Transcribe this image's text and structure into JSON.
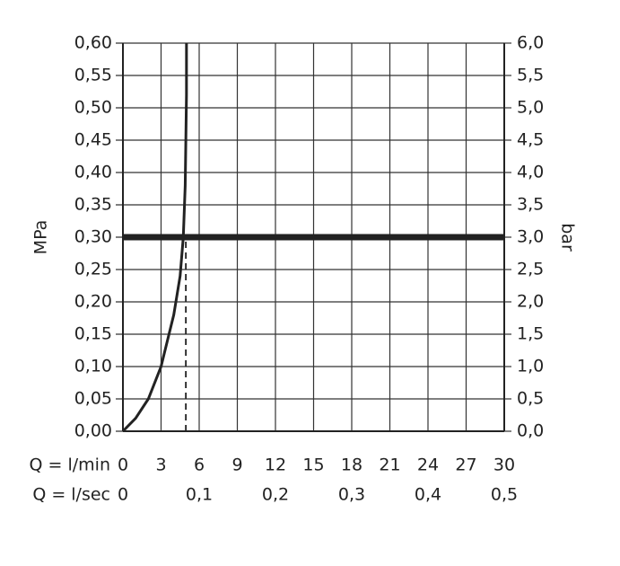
{
  "chart_data": {
    "type": "line",
    "ylabel": "MPa",
    "y2label": "bar",
    "xlabel": "Q = l/min",
    "x2label": "Q = l/sec",
    "xlim": [
      0,
      30
    ],
    "xticks": [
      0,
      3,
      6,
      9,
      12,
      15,
      18,
      21,
      24,
      27,
      30
    ],
    "x2lim": [
      0,
      0.5
    ],
    "x2ticks": [
      0,
      {
        "value": 0.1,
        "label": "0,1"
      },
      {
        "value": 0.2,
        "label": "0,2"
      },
      {
        "value": 0.3,
        "label": "0,3"
      },
      {
        "value": 0.4,
        "label": "0,4"
      },
      {
        "value": 0.5,
        "label": "0,5"
      }
    ],
    "ylim": [
      0,
      0.6
    ],
    "yticks": [
      {
        "value": 0,
        "label": "0,00"
      },
      {
        "value": 0.05,
        "label": "0,05"
      },
      {
        "value": 0.1,
        "label": "0,10"
      },
      {
        "value": 0.15,
        "label": "0,15"
      },
      {
        "value": 0.2,
        "label": "0,20"
      },
      {
        "value": 0.25,
        "label": "0,25"
      },
      {
        "value": 0.3,
        "label": "0,30"
      },
      {
        "value": 0.35,
        "label": "0,35"
      },
      {
        "value": 0.4,
        "label": "0,40"
      },
      {
        "value": 0.45,
        "label": "0,45"
      },
      {
        "value": 0.5,
        "label": "0,50"
      },
      {
        "value": 0.55,
        "label": "0,55"
      },
      {
        "value": 0.6,
        "label": "0,60"
      }
    ],
    "y2lim": [
      0,
      6
    ],
    "y2ticks": [
      {
        "value": 0,
        "label": "0,0"
      },
      {
        "value": 0.5,
        "label": "0,5"
      },
      {
        "value": 1,
        "label": "1,0"
      },
      {
        "value": 1.5,
        "label": "1,5"
      },
      {
        "value": 2,
        "label": "2,0"
      },
      {
        "value": 2.5,
        "label": "2,5"
      },
      {
        "value": 3,
        "label": "3,0"
      },
      {
        "value": 3.5,
        "label": "3,5"
      },
      {
        "value": 4,
        "label": "4,0"
      },
      {
        "value": 4.5,
        "label": "4,5"
      },
      {
        "value": 5,
        "label": "5,0"
      },
      {
        "value": 5.5,
        "label": "5,5"
      },
      {
        "value": 6,
        "label": "6,0"
      }
    ],
    "grid": true,
    "series": [
      {
        "color": "#222222",
        "width": 3,
        "x": [
          0,
          1,
          2,
          3,
          4,
          4.5,
          4.75,
          4.9,
          4.95,
          5,
          5
        ],
        "values": [
          0,
          0.02,
          0.05,
          0.1,
          0.18,
          0.24,
          0.3,
          0.38,
          0.45,
          0.52,
          0.6
        ]
      },
      {
        "color": "#222222",
        "width": 7,
        "x": [
          0,
          30
        ],
        "values": [
          0.3,
          0.3
        ]
      },
      {
        "color": "#222222",
        "width": 1.8,
        "dash": true,
        "x": [
          4.95,
          4.95
        ],
        "values": [
          0,
          0.3
        ]
      }
    ]
  }
}
